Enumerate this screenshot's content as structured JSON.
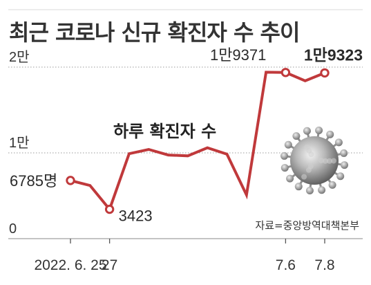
{
  "chart_data": {
    "type": "line",
    "title": "최근 코로나 신규 확진자 수 추이",
    "series": [
      {
        "name": "하루 확진자 수",
        "color": "#c0393b",
        "values": [
          6785,
          6200,
          3423,
          9900,
          10400,
          9750,
          9650,
          10600,
          9850,
          5100,
          19400,
          19371,
          18400,
          19323
        ]
      }
    ],
    "x_ticks": [
      {
        "index": 0,
        "label": "2022. 6. 25"
      },
      {
        "index": 2,
        "label": "27"
      },
      {
        "index": 11,
        "label": "7.6"
      },
      {
        "index": 13,
        "label": "7.8"
      }
    ],
    "y_ticks": [
      {
        "value": 0,
        "label": "0"
      },
      {
        "value": 10000,
        "label": "1만"
      },
      {
        "value": 20000,
        "label": "2만"
      }
    ],
    "ylim": [
      0,
      20000
    ],
    "grid": "dotted-horizontal",
    "data_labels": [
      {
        "index": 0,
        "text": "6785명",
        "weight": "normal"
      },
      {
        "index": 2,
        "text": "3423",
        "weight": "normal"
      },
      {
        "index": 11,
        "text": "1만9371",
        "weight": "normal"
      },
      {
        "index": 13,
        "text": "1만9323",
        "weight": "bold"
      }
    ],
    "source": "자료=중앙방역대책본부",
    "decoration": "coronavirus-illustration"
  }
}
